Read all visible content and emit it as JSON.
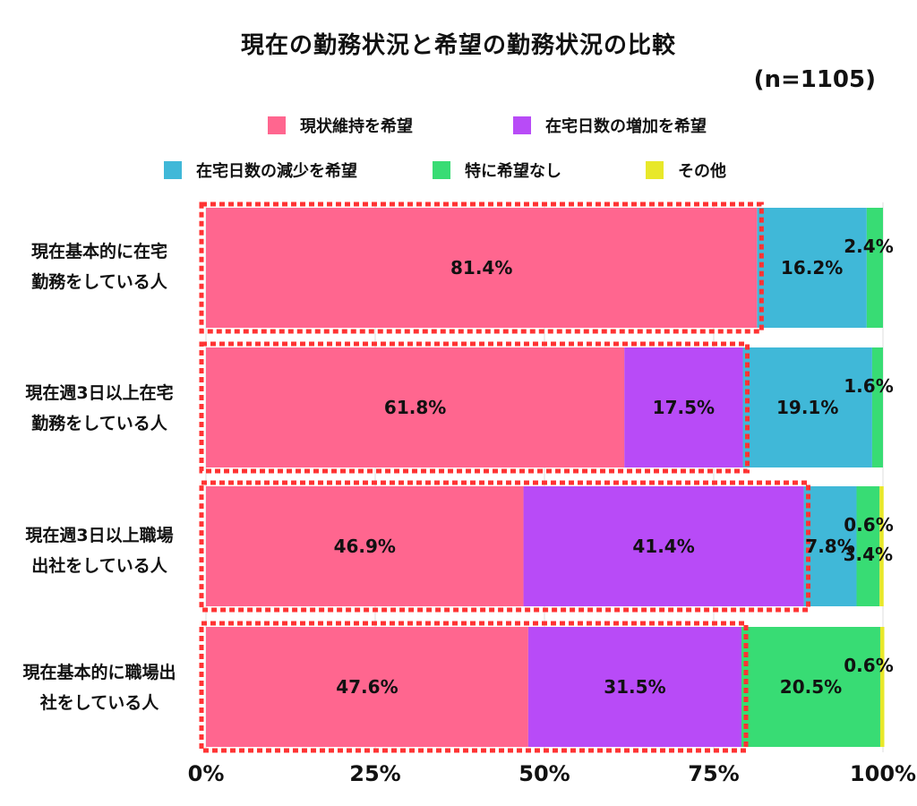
{
  "chart_data": {
    "type": "bar",
    "orientation": "horizontal",
    "stacked": true,
    "title": "現在の勤務状況と希望の勤務状況の比較",
    "subtitle": "(n=1105)",
    "categories": [
      "現在基本的に在宅勤務をしている人",
      "現在週3日以上在宅勤務をしている人",
      "現在週3日以上職場出社をしている人",
      "現在基本的に職場出社をしている人"
    ],
    "category_lines": [
      [
        "現在基本的に在宅",
        "勤務をしている人"
      ],
      [
        "現在週3日以上在宅",
        "勤務をしている人"
      ],
      [
        "現在週3日以上職場",
        "出社をしている人"
      ],
      [
        "現在基本的に職場出",
        "社をしている人"
      ]
    ],
    "series": [
      {
        "name": "現状維持を希望",
        "color": "#ff668f",
        "values": [
          81.4,
          61.8,
          46.9,
          47.6
        ],
        "labels": [
          "81.4%",
          "61.8%",
          "46.9%",
          "47.6%"
        ]
      },
      {
        "name": "在宅日数の増加を希望",
        "color": "#b84bf7",
        "values": [
          0,
          17.5,
          41.4,
          31.5
        ],
        "labels": [
          "",
          "17.5%",
          "41.4%",
          "31.5%"
        ]
      },
      {
        "name": "在宅日数の減少を希望",
        "color": "#40b8d8",
        "values": [
          16.2,
          19.1,
          7.8,
          0
        ],
        "labels": [
          "16.2%",
          "19.1%",
          "7.8%",
          ""
        ]
      },
      {
        "name": "特に希望なし",
        "color": "#38dc74",
        "values": [
          2.4,
          1.6,
          3.4,
          20.5
        ],
        "labels": [
          "2.4%",
          "1.6%",
          "3.4%",
          "20.5%"
        ]
      },
      {
        "name": "その他",
        "color": "#e8e82a",
        "values": [
          0,
          0,
          0.6,
          0.6
        ],
        "labels": [
          "",
          "",
          "0.6%",
          "0.6%"
        ]
      }
    ],
    "highlight_values": [
      81.4,
      79.3,
      88.3,
      79.1
    ],
    "highlight_color": "#ff3333",
    "xlim": [
      0,
      100
    ],
    "xticks": [
      "0%",
      "25%",
      "50%",
      "75%",
      "100%"
    ],
    "legend_position": "top"
  }
}
